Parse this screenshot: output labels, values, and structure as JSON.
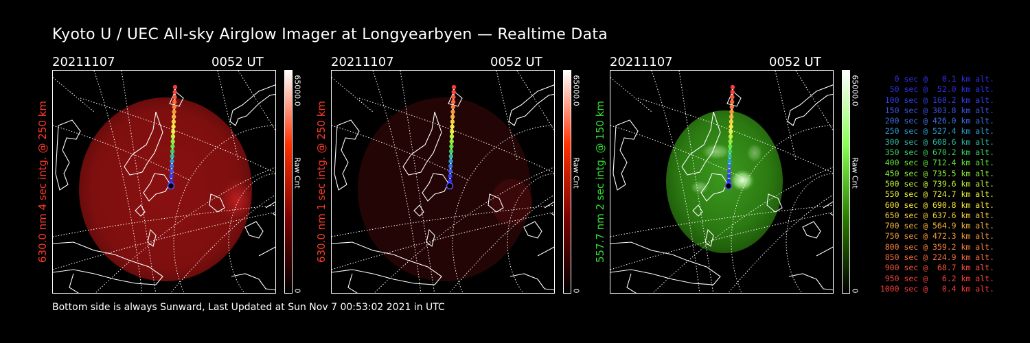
{
  "title": "Kyoto U / UEC All-sky Airglow Imager at Longyearbyen — Realtime Data",
  "footer": "Bottom side is always Sunward, Last Updated at Sun Nov  7 00:53:02 2021 in UTC",
  "chart_data": [
    {
      "type": "heatmap",
      "date": "20211107",
      "time": "0052 UT",
      "ylabel": "630.0 nm 4 sec intg. @ 250 km",
      "label_color": "#ff3a2a",
      "colorbar": {
        "max_label": "65000.0",
        "min_label": "0",
        "unit": "Raw Cnt",
        "colors": [
          "#000000",
          "#7a0000",
          "#ff3000",
          "#ffffff"
        ]
      },
      "image_color": "#8a1010"
    },
    {
      "type": "heatmap",
      "date": "20211107",
      "time": "0052 UT",
      "ylabel": "630.0 nm 1 sec intg. @ 250 km",
      "label_color": "#ff3a2a",
      "colorbar": {
        "max_label": "65000.0",
        "min_label": "0",
        "unit": "Raw Cnt",
        "colors": [
          "#000000",
          "#7a0000",
          "#ff3000",
          "#ffffff"
        ]
      },
      "image_color": "#2a0606"
    },
    {
      "type": "heatmap",
      "date": "20211107",
      "time": "0052 UT",
      "ylabel": "557.7 nm 2 sec intg. @ 150 km",
      "label_color": "#33dd33",
      "colorbar": {
        "max_label": "65000.0",
        "min_label": "0",
        "unit": "Raw Cnt",
        "colors": [
          "#000000",
          "#2a7a00",
          "#88ff55",
          "#ffffff"
        ]
      },
      "image_color": "#2c7a12"
    }
  ],
  "trajectory_legend": [
    {
      "time": "0 sec",
      "alt": "0.1 km alt.",
      "color": "#2f2fe8"
    },
    {
      "time": "50 sec",
      "alt": "52.0 km alt.",
      "color": "#2f2fe8"
    },
    {
      "time": "100 sec",
      "alt": "160.2 km alt.",
      "color": "#2f40e8"
    },
    {
      "time": "150 sec",
      "alt": "303.8 km alt.",
      "color": "#3a55e8"
    },
    {
      "time": "200 sec",
      "alt": "426.0 km alt.",
      "color": "#3a70e0"
    },
    {
      "time": "250 sec",
      "alt": "527.4 km alt.",
      "color": "#2c9ad2"
    },
    {
      "time": "300 sec",
      "alt": "608.6 km alt.",
      "color": "#2fb8a0"
    },
    {
      "time": "350 sec",
      "alt": "670.2 km alt.",
      "color": "#3ad060"
    },
    {
      "time": "400 sec",
      "alt": "712.4 km alt.",
      "color": "#5ee83a"
    },
    {
      "time": "450 sec",
      "alt": "735.5 km alt.",
      "color": "#8cf03a"
    },
    {
      "time": "500 sec",
      "alt": "739.6 km alt.",
      "color": "#c0f23a"
    },
    {
      "time": "550 sec",
      "alt": "724.7 km alt.",
      "color": "#e8f03a"
    },
    {
      "time": "600 sec",
      "alt": "690.8 km alt.",
      "color": "#f8e83a"
    },
    {
      "time": "650 sec",
      "alt": "637.6 km alt.",
      "color": "#f8d03a"
    },
    {
      "time": "700 sec",
      "alt": "564.9 km alt.",
      "color": "#f8b43a"
    },
    {
      "time": "750 sec",
      "alt": "472.3 km alt.",
      "color": "#f89a3a"
    },
    {
      "time": "800 sec",
      "alt": "359.2 km alt.",
      "color": "#f8823a"
    },
    {
      "time": "850 sec",
      "alt": "224.9 km alt.",
      "color": "#f86a3a"
    },
    {
      "time": "900 sec",
      "alt": "68.7 km alt.",
      "color": "#f8523a"
    },
    {
      "time": "950 sec",
      "alt": "6.2 km alt.",
      "color": "#f8423a"
    },
    {
      "time": "1000 sec",
      "alt": "0.4 km alt.",
      "color": "#f83a3a"
    }
  ]
}
